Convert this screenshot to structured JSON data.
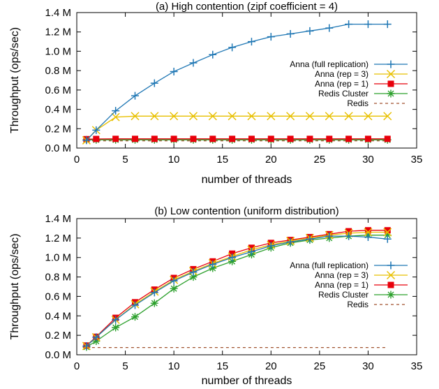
{
  "chart_data": [
    {
      "type": "line",
      "title": "(a) High contention (zipf coefficient = 4)",
      "xlabel": "number of threads",
      "ylabel": "Throughput (ops/sec)",
      "xlim": [
        0,
        35
      ],
      "ylim": [
        0,
        1400000
      ],
      "xticks": [
        0,
        5,
        10,
        15,
        20,
        25,
        30,
        35
      ],
      "yticks": [
        0,
        200000,
        400000,
        600000,
        800000,
        1000000,
        1200000,
        1400000
      ],
      "ytick_labels": [
        "0.0 M",
        "0.2 M",
        "0.4 M",
        "0.6 M",
        "0.8 M",
        "1.0 M",
        "1.2 M",
        "1.4 M"
      ],
      "grid": false,
      "legend_position": "right",
      "x": [
        1,
        2,
        4,
        6,
        8,
        10,
        12,
        14,
        16,
        18,
        20,
        22,
        24,
        26,
        28,
        30,
        32
      ],
      "series": [
        {
          "name": "Anna (full replication)",
          "color": "#1f77b4",
          "marker": "plus",
          "values": [
            80000,
            185000,
            385000,
            540000,
            670000,
            790000,
            880000,
            965000,
            1040000,
            1100000,
            1150000,
            1180000,
            1210000,
            1240000,
            1280000,
            1280000,
            1280000
          ]
        },
        {
          "name": "Anna (rep = 3)",
          "color": "#e8c000",
          "marker": "cross",
          "values": [
            80000,
            185000,
            320000,
            330000,
            330000,
            330000,
            330000,
            330000,
            330000,
            330000,
            330000,
            330000,
            330000,
            330000,
            330000,
            330000,
            330000
          ]
        },
        {
          "name": "Anna (rep = 1)",
          "color": "#e8000b",
          "marker": "square",
          "values": [
            92000,
            94000,
            95000,
            95000,
            95000,
            95000,
            95000,
            95000,
            95000,
            95000,
            95000,
            95000,
            95000,
            95000,
            95000,
            95000,
            95000
          ]
        },
        {
          "name": "Redis Cluster",
          "color": "#2ca02c",
          "marker": "star",
          "values": [
            85000,
            85000,
            85000,
            85000,
            85000,
            85000,
            85000,
            85000,
            85000,
            85000,
            85000,
            85000,
            85000,
            85000,
            85000,
            85000,
            85000
          ]
        },
        {
          "name": "Redis",
          "color": "#a0522d",
          "marker": "none",
          "dashed": true,
          "values": [
            75000,
            75000,
            75000,
            75000,
            75000,
            75000,
            75000,
            75000,
            75000,
            75000,
            75000,
            75000,
            75000,
            75000,
            75000,
            75000,
            75000
          ]
        }
      ]
    },
    {
      "type": "line",
      "title": "(b) Low contention (uniform distribution)",
      "xlabel": "number of threads",
      "ylabel": "Throughput (ops/sec)",
      "xlim": [
        0,
        35
      ],
      "ylim": [
        0,
        1400000
      ],
      "xticks": [
        0,
        5,
        10,
        15,
        20,
        25,
        30,
        35
      ],
      "yticks": [
        0,
        200000,
        400000,
        600000,
        800000,
        1000000,
        1200000,
        1400000
      ],
      "ytick_labels": [
        "0.0 M",
        "0.2 M",
        "0.4 M",
        "0.6 M",
        "0.8 M",
        "1.0 M",
        "1.2 M",
        "1.4 M"
      ],
      "grid": false,
      "legend_position": "right",
      "x": [
        1,
        2,
        4,
        6,
        8,
        10,
        12,
        14,
        16,
        18,
        20,
        22,
        24,
        26,
        28,
        30,
        32
      ],
      "series": [
        {
          "name": "Anna (full replication)",
          "color": "#1f77b4",
          "marker": "plus",
          "values": [
            90000,
            180000,
            360000,
            510000,
            640000,
            760000,
            850000,
            930000,
            1000000,
            1060000,
            1120000,
            1160000,
            1190000,
            1220000,
            1220000,
            1210000,
            1190000
          ]
        },
        {
          "name": "Anna (rep = 3)",
          "color": "#e8c000",
          "marker": "cross",
          "values": [
            90000,
            180000,
            360000,
            520000,
            650000,
            770000,
            860000,
            940000,
            1010000,
            1080000,
            1130000,
            1170000,
            1200000,
            1230000,
            1250000,
            1260000,
            1260000
          ]
        },
        {
          "name": "Anna (rep = 1)",
          "color": "#e8000b",
          "marker": "square",
          "values": [
            95000,
            185000,
            380000,
            540000,
            670000,
            790000,
            880000,
            960000,
            1040000,
            1100000,
            1150000,
            1180000,
            1210000,
            1240000,
            1270000,
            1280000,
            1280000
          ]
        },
        {
          "name": "Redis Cluster",
          "color": "#2ca02c",
          "marker": "star",
          "values": [
            80000,
            140000,
            280000,
            390000,
            530000,
            680000,
            800000,
            890000,
            960000,
            1030000,
            1100000,
            1150000,
            1180000,
            1200000,
            1220000,
            1230000,
            1230000
          ]
        },
        {
          "name": "Redis",
          "color": "#a0522d",
          "marker": "none",
          "dashed": true,
          "values": [
            75000,
            75000,
            75000,
            75000,
            75000,
            75000,
            75000,
            75000,
            75000,
            75000,
            75000,
            75000,
            75000,
            75000,
            75000,
            75000,
            75000
          ]
        }
      ]
    }
  ]
}
